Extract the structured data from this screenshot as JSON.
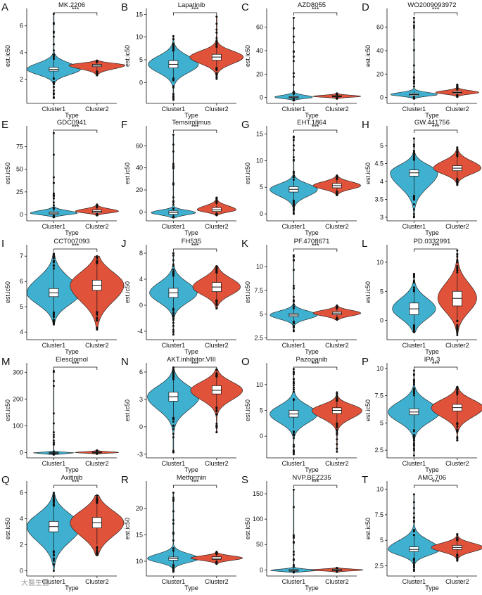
{
  "figure": {
    "watermark": "大醫生醫",
    "colors": {
      "cluster1": "#3fb0cf",
      "cluster2": "#e0523a",
      "outline": "#1a1a1a"
    }
  },
  "chart_data": [
    {
      "letter": "A",
      "type": "violin",
      "title": "MK.2206",
      "ylabel": "est.ic50",
      "xlabel": "Type",
      "categories": [
        "Cluster1",
        "Cluster2"
      ],
      "significance": "***",
      "ylim": [
        0.2,
        7.3
      ],
      "yticks": [
        2,
        4,
        6
      ],
      "series": [
        {
          "name": "Cluster1",
          "median": 2.75,
          "q1": 2.62,
          "q3": 2.9,
          "min": 0.6,
          "max": 6.9,
          "p5": 2.1,
          "p95": 3.5,
          "half_width": 0.62
        },
        {
          "name": "Cluster2",
          "median": 3.05,
          "q1": 2.95,
          "q3": 3.12,
          "min": 2.3,
          "max": 3.4,
          "p5": 2.6,
          "p95": 3.3,
          "half_width": 0.65
        }
      ]
    },
    {
      "letter": "B",
      "type": "violin",
      "title": "Lapatinib",
      "ylabel": "est.ic50",
      "xlabel": "Type",
      "categories": [
        "Cluster1",
        "Cluster2"
      ],
      "significance": "***",
      "ylim": [
        -4.6,
        16.3
      ],
      "yticks": [
        0,
        5,
        10,
        15
      ],
      "series": [
        {
          "name": "Cluster1",
          "median": 4.0,
          "q1": 3.2,
          "q3": 4.8,
          "min": -3.8,
          "max": 10.2,
          "p5": 1.0,
          "p95": 7.0,
          "half_width": 0.58
        },
        {
          "name": "Cluster2",
          "median": 5.6,
          "q1": 4.9,
          "q3": 6.2,
          "min": 0.8,
          "max": 14.5,
          "p5": 3.2,
          "p95": 7.8,
          "half_width": 0.62
        }
      ]
    },
    {
      "letter": "C",
      "type": "violin",
      "title": "AZD8055",
      "ylabel": "est.ic50",
      "xlabel": "Type",
      "categories": [
        "Cluster1",
        "Cluster2"
      ],
      "significance": "***",
      "ylim": [
        -5,
        76
      ],
      "yticks": [
        0,
        20,
        40,
        60
      ],
      "series": [
        {
          "name": "Cluster1",
          "median": 0.2,
          "q1": -0.5,
          "q3": 0.8,
          "min": -2.5,
          "max": 68,
          "p5": -1.5,
          "p95": 3.0,
          "half_width": 0.45
        },
        {
          "name": "Cluster2",
          "median": 1.0,
          "q1": 0.5,
          "q3": 1.6,
          "min": -1.0,
          "max": 3.5,
          "p5": -0.3,
          "p95": 2.6,
          "half_width": 0.55
        }
      ]
    },
    {
      "letter": "D",
      "type": "violin",
      "title": "WO2009093972",
      "ylabel": "est.ic50",
      "xlabel": "Type",
      "categories": [
        "Cluster1",
        "Cluster2"
      ],
      "significance": "***",
      "ylim": [
        -5,
        76
      ],
      "yticks": [
        0,
        20,
        40,
        60
      ],
      "series": [
        {
          "name": "Cluster1",
          "median": 2.5,
          "q1": 1.6,
          "q3": 3.4,
          "min": -1.0,
          "max": 68,
          "p5": 0.3,
          "p95": 5.5,
          "half_width": 0.55
        },
        {
          "name": "Cluster2",
          "median": 4.3,
          "q1": 3.5,
          "q3": 5.2,
          "min": 0.5,
          "max": 11.0,
          "p5": 2.0,
          "p95": 7.0,
          "half_width": 0.5
        }
      ]
    },
    {
      "letter": "E",
      "type": "violin",
      "title": "GDC0941",
      "ylabel": "est.ic50",
      "xlabel": "Type",
      "categories": [
        "Cluster1",
        "Cluster2"
      ],
      "significance": "***",
      "ylim": [
        -7,
        98
      ],
      "yticks": [
        0,
        25,
        50,
        75
      ],
      "series": [
        {
          "name": "Cluster1",
          "median": 1.5,
          "q1": 0.3,
          "q3": 2.8,
          "min": -3.0,
          "max": 90,
          "p5": -1.5,
          "p95": 6.0,
          "half_width": 0.55
        },
        {
          "name": "Cluster2",
          "median": 3.5,
          "q1": 2.0,
          "q3": 5.0,
          "min": -1.0,
          "max": 11.0,
          "p5": 0.5,
          "p95": 8.0,
          "half_width": 0.5
        }
      ]
    },
    {
      "letter": "F",
      "type": "violin",
      "title": "Temsirolimus",
      "ylabel": "est.ic50",
      "xlabel": "Type",
      "categories": [
        "Cluster1",
        "Cluster2"
      ],
      "significance": "***",
      "ylim": [
        -8,
        78
      ],
      "yticks": [
        0,
        20,
        40,
        60
      ],
      "series": [
        {
          "name": "Cluster1",
          "median": -0.5,
          "q1": -2.0,
          "q3": 1.0,
          "min": -5.0,
          "max": 70,
          "p5": -4.0,
          "p95": 3.0,
          "half_width": 0.52
        },
        {
          "name": "Cluster2",
          "median": 2.0,
          "q1": 0.5,
          "q3": 4.0,
          "min": -3.0,
          "max": 13.0,
          "p5": -1.5,
          "p95": 8.0,
          "half_width": 0.45
        }
      ]
    },
    {
      "letter": "G",
      "type": "violin",
      "title": "EHT.1864",
      "ylabel": "est.ic50",
      "xlabel": "Type",
      "categories": [
        "Cluster1",
        "Cluster2"
      ],
      "significance": "***",
      "ylim": [
        -1.3,
        16.5
      ],
      "yticks": [
        0,
        5,
        10,
        15
      ],
      "series": [
        {
          "name": "Cluster1",
          "median": 4.6,
          "q1": 4.1,
          "q3": 5.1,
          "min": 0.0,
          "max": 14.5,
          "p5": 2.5,
          "p95": 6.3,
          "half_width": 0.55
        },
        {
          "name": "Cluster2",
          "median": 5.3,
          "q1": 4.9,
          "q3": 5.7,
          "min": 3.5,
          "max": 7.2,
          "p5": 4.2,
          "p95": 6.5,
          "half_width": 0.55
        }
      ]
    },
    {
      "letter": "H",
      "type": "violin",
      "title": "GW.441756",
      "ylabel": "est.ic50",
      "xlabel": "Type",
      "categories": [
        "Cluster1",
        "Cluster2"
      ],
      "significance": "***",
      "ylim": [
        2.9,
        5.55
      ],
      "yticks": [
        3.0,
        3.5,
        4.0,
        4.5,
        5.0
      ],
      "series": [
        {
          "name": "Cluster1",
          "median": 4.24,
          "q1": 4.15,
          "q3": 4.32,
          "min": 3.0,
          "max": 5.2,
          "p5": 3.6,
          "p95": 4.6,
          "half_width": 0.55
        },
        {
          "name": "Cluster2",
          "median": 4.37,
          "q1": 4.3,
          "q3": 4.44,
          "min": 3.9,
          "max": 4.95,
          "p5": 4.1,
          "p95": 4.7,
          "half_width": 0.55
        }
      ]
    },
    {
      "letter": "I",
      "type": "violin",
      "title": "CCT007093",
      "ylabel": "est.ic50",
      "xlabel": "Type",
      "categories": [
        "Cluster1",
        "Cluster2"
      ],
      "significance": "***",
      "ylim": [
        3.7,
        7.45
      ],
      "yticks": [
        4,
        5,
        6,
        7
      ],
      "series": [
        {
          "name": "Cluster1",
          "median": 5.55,
          "q1": 5.4,
          "q3": 5.72,
          "min": 4.3,
          "max": 7.1,
          "p5": 4.8,
          "p95": 6.5,
          "half_width": 0.62
        },
        {
          "name": "Cluster2",
          "median": 5.85,
          "q1": 5.65,
          "q3": 6.05,
          "min": 4.1,
          "max": 7.0,
          "p5": 4.8,
          "p95": 6.7,
          "half_width": 0.62
        }
      ]
    },
    {
      "letter": "J",
      "type": "violin",
      "title": "FH535",
      "ylabel": "est.ic50",
      "xlabel": "Type",
      "categories": [
        "Cluster1",
        "Cluster2"
      ],
      "significance": "***",
      "ylim": [
        -5.3,
        9.3
      ],
      "yticks": [
        -4,
        0,
        4,
        8
      ],
      "series": [
        {
          "name": "Cluster1",
          "median": 1.9,
          "q1": 1.2,
          "q3": 2.6,
          "min": -4.5,
          "max": 8.0,
          "p5": -0.5,
          "p95": 4.5,
          "half_width": 0.55
        },
        {
          "name": "Cluster2",
          "median": 2.8,
          "q1": 2.1,
          "q3": 3.5,
          "min": -0.5,
          "max": 6.0,
          "p5": 0.8,
          "p95": 5.0,
          "half_width": 0.55
        }
      ]
    },
    {
      "letter": "K",
      "type": "violin",
      "title": "PF.4708671",
      "ylabel": "est.ic50",
      "xlabel": "Type",
      "categories": [
        "Cluster1",
        "Cluster2"
      ],
      "significance": "***",
      "ylim": [
        2.3,
        12.3
      ],
      "yticks": [
        2.5,
        5.0,
        7.5,
        10.0
      ],
      "series": [
        {
          "name": "Cluster1",
          "median": 4.9,
          "q1": 4.75,
          "q3": 5.05,
          "min": 3.2,
          "max": 11.2,
          "p5": 4.2,
          "p95": 5.6,
          "half_width": 0.55
        },
        {
          "name": "Cluster2",
          "median": 5.1,
          "q1": 4.95,
          "q3": 5.25,
          "min": 4.4,
          "max": 5.9,
          "p5": 4.6,
          "p95": 5.6,
          "half_width": 0.55
        }
      ]
    },
    {
      "letter": "L",
      "type": "violin",
      "title": "PD.0332991",
      "ylabel": "est.ic50",
      "xlabel": "Type",
      "categories": [
        "Cluster1",
        "Cluster2"
      ],
      "significance": "***",
      "ylim": [
        -3.3,
        13.0
      ],
      "yticks": [
        0,
        5,
        10
      ],
      "series": [
        {
          "name": "Cluster1",
          "median": 2.0,
          "q1": 1.0,
          "q3": 3.0,
          "min": -2.0,
          "max": 8.0,
          "p5": -0.8,
          "p95": 5.0,
          "half_width": 0.5
        },
        {
          "name": "Cluster2",
          "median": 3.8,
          "q1": 2.5,
          "q3": 5.0,
          "min": -2.5,
          "max": 12.0,
          "p5": 0.0,
          "p95": 8.0,
          "half_width": 0.45
        }
      ]
    },
    {
      "letter": "M",
      "type": "violin",
      "title": "Elesclomol",
      "ylabel": "est.ic50",
      "xlabel": "Type",
      "categories": [
        "Cluster1",
        "Cluster2"
      ],
      "significance": "***",
      "ylim": [
        -20,
        335
      ],
      "yticks": [
        0,
        100,
        200,
        300
      ],
      "series": [
        {
          "name": "Cluster1",
          "median": -2.0,
          "q1": -4.0,
          "q3": 0.0,
          "min": -8.0,
          "max": 305,
          "p5": -6.0,
          "p95": 3.0,
          "half_width": 0.5
        },
        {
          "name": "Cluster2",
          "median": 0.0,
          "q1": -2.0,
          "q3": 2.0,
          "min": -5.0,
          "max": 8.0,
          "p5": -4.0,
          "p95": 5.0,
          "half_width": 0.5
        }
      ]
    },
    {
      "letter": "N",
      "type": "violin",
      "title": "AKT.inhibitor.VIII",
      "ylabel": "est.ic50",
      "xlabel": "Type",
      "categories": [
        "Cluster1",
        "Cluster2"
      ],
      "significance": "***",
      "ylim": [
        -3.4,
        7.0
      ],
      "yticks": [
        -3,
        0,
        3,
        6
      ],
      "series": [
        {
          "name": "Cluster1",
          "median": 3.3,
          "q1": 2.8,
          "q3": 3.8,
          "min": -2.8,
          "max": 6.5,
          "p5": 1.0,
          "p95": 5.2,
          "half_width": 0.6
        },
        {
          "name": "Cluster2",
          "median": 4.0,
          "q1": 3.6,
          "q3": 4.5,
          "min": -0.6,
          "max": 6.3,
          "p5": 2.3,
          "p95": 5.5,
          "half_width": 0.6
        }
      ]
    },
    {
      "letter": "O",
      "type": "violin",
      "title": "Pazopanib",
      "ylabel": "est.ic50",
      "xlabel": "Type",
      "categories": [
        "Cluster1",
        "Cluster2"
      ],
      "significance": "***",
      "ylim": [
        -4.2,
        14.2
      ],
      "yticks": [
        0,
        5,
        10
      ],
      "series": [
        {
          "name": "Cluster1",
          "median": 4.3,
          "q1": 3.7,
          "q3": 5.0,
          "min": -3.5,
          "max": 13.0,
          "p5": 1.5,
          "p95": 7.0,
          "half_width": 0.55
        },
        {
          "name": "Cluster2",
          "median": 5.0,
          "q1": 4.4,
          "q3": 5.5,
          "min": -3.0,
          "max": 8.5,
          "p5": 2.5,
          "p95": 6.8,
          "half_width": 0.58
        }
      ]
    },
    {
      "letter": "P",
      "type": "violin",
      "title": "IPA.3",
      "ylabel": "est.ic50",
      "xlabel": "Type",
      "categories": [
        "Cluster1",
        "Cluster2"
      ],
      "significance": "***",
      "ylim": [
        1.8,
        10.5
      ],
      "yticks": [
        2.5,
        5.0,
        7.5,
        10.0
      ],
      "series": [
        {
          "name": "Cluster1",
          "median": 6.0,
          "q1": 5.75,
          "q3": 6.3,
          "min": 2.0,
          "max": 9.8,
          "p5": 4.5,
          "p95": 7.5,
          "half_width": 0.6
        },
        {
          "name": "Cluster2",
          "median": 6.4,
          "q1": 6.1,
          "q3": 6.7,
          "min": 3.4,
          "max": 8.3,
          "p5": 5.0,
          "p95": 7.6,
          "half_width": 0.6
        }
      ]
    },
    {
      "letter": "Q",
      "type": "violin",
      "title": "Axitinib",
      "ylabel": "est.ic50",
      "xlabel": "Type",
      "categories": [
        "Cluster1",
        "Cluster2"
      ],
      "significance": "***",
      "ylim": [
        -0.4,
        6.9
      ],
      "yticks": [
        0,
        2,
        4,
        6
      ],
      "series": [
        {
          "name": "Cluster1",
          "median": 3.4,
          "q1": 3.0,
          "q3": 3.8,
          "min": 0.0,
          "max": 6.0,
          "p5": 1.5,
          "p95": 5.0,
          "half_width": 0.62
        },
        {
          "name": "Cluster2",
          "median": 3.7,
          "q1": 3.3,
          "q3": 4.1,
          "min": 1.2,
          "max": 5.8,
          "p5": 2.0,
          "p95": 5.2,
          "half_width": 0.62
        }
      ]
    },
    {
      "letter": "R",
      "type": "violin",
      "title": "Metformin",
      "ylabel": "est.ic50",
      "xlabel": "Type",
      "categories": [
        "Cluster1",
        "Cluster2"
      ],
      "significance": "***",
      "ylim": [
        7.2,
        25.2
      ],
      "yticks": [
        10,
        15,
        20
      ],
      "series": [
        {
          "name": "Cluster1",
          "median": 10.5,
          "q1": 10.2,
          "q3": 10.8,
          "min": 8.0,
          "max": 23.0,
          "p5": 9.3,
          "p95": 12.0,
          "half_width": 0.6
        },
        {
          "name": "Cluster2",
          "median": 10.6,
          "q1": 10.35,
          "q3": 10.85,
          "min": 9.5,
          "max": 11.8,
          "p5": 9.9,
          "p95": 11.3,
          "half_width": 0.6
        }
      ]
    },
    {
      "letter": "S",
      "type": "violin",
      "title": "NVP.BEZ235",
      "ylabel": "est.ic50",
      "xlabel": "Type",
      "categories": [
        "Cluster1",
        "Cluster2"
      ],
      "significance": "***",
      "ylim": [
        -12,
        175
      ],
      "yticks": [
        0,
        50,
        100,
        150
      ],
      "series": [
        {
          "name": "Cluster1",
          "median": -1.0,
          "q1": -2.5,
          "q3": 0.5,
          "min": -5.0,
          "max": 158,
          "p5": -4.0,
          "p95": 3.0,
          "half_width": 0.55
        },
        {
          "name": "Cluster2",
          "median": 0.0,
          "q1": -1.5,
          "q3": 1.5,
          "min": -4.0,
          "max": 4.0,
          "p5": -3.0,
          "p95": 3.0,
          "half_width": 0.6
        }
      ]
    },
    {
      "letter": "T",
      "type": "violin",
      "title": "AMG.706",
      "ylabel": "est.ic50",
      "xlabel": "Type",
      "categories": [
        "Cluster1",
        "Cluster2"
      ],
      "significance": "***",
      "ylim": [
        1.5,
        10.8
      ],
      "yticks": [
        2.5,
        5.0,
        7.5,
        10.0
      ],
      "series": [
        {
          "name": "Cluster1",
          "median": 4.1,
          "q1": 3.9,
          "q3": 4.35,
          "min": 2.0,
          "max": 9.5,
          "p5": 3.2,
          "p95": 5.5,
          "half_width": 0.6
        },
        {
          "name": "Cluster2",
          "median": 4.3,
          "q1": 4.1,
          "q3": 4.5,
          "min": 3.0,
          "max": 5.6,
          "p5": 3.6,
          "p95": 5.0,
          "half_width": 0.6
        }
      ]
    }
  ]
}
